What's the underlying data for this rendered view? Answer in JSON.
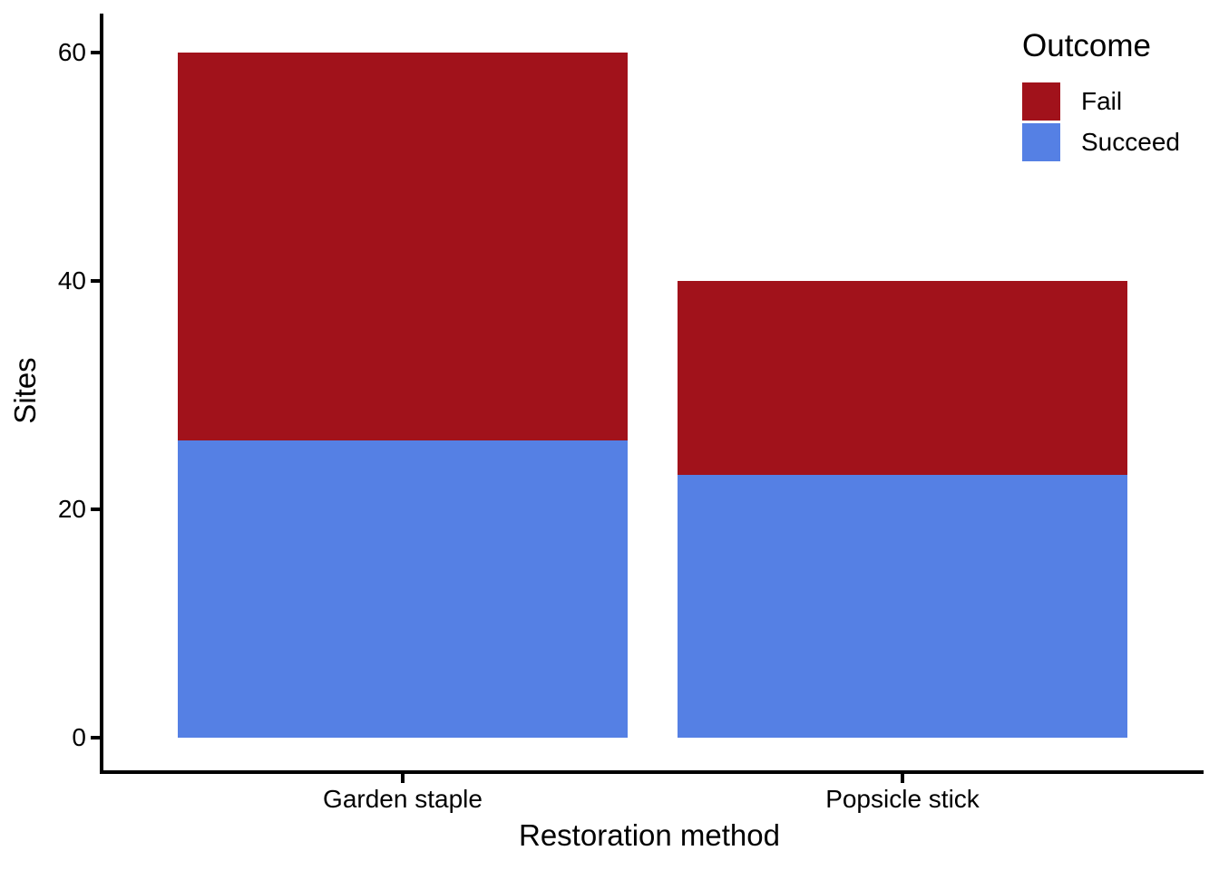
{
  "chart_data": {
    "type": "bar",
    "stacked": true,
    "title": "",
    "xlabel": "Restoration method",
    "ylabel": "Sites",
    "categories": [
      "Garden staple",
      "Popsicle stick"
    ],
    "series": [
      {
        "name": "Fail",
        "color": "#A1121B",
        "values": [
          34,
          17
        ]
      },
      {
        "name": "Succeed",
        "color": "#5580E4",
        "values": [
          26,
          23
        ]
      }
    ],
    "stack_bottom_to_top": [
      "Succeed",
      "Fail"
    ],
    "totals": [
      60,
      40
    ],
    "y_ticks": [
      0,
      20,
      40,
      60
    ],
    "ylim": [
      0,
      60
    ],
    "grid": false,
    "background_color": "#FFFFFF",
    "axis_color": "#000000",
    "legend": {
      "title": "Outcome",
      "position": "top-right",
      "entries": [
        {
          "label": "Fail",
          "color": "#A1121B"
        },
        {
          "label": "Succeed",
          "color": "#5580E4"
        }
      ]
    }
  }
}
